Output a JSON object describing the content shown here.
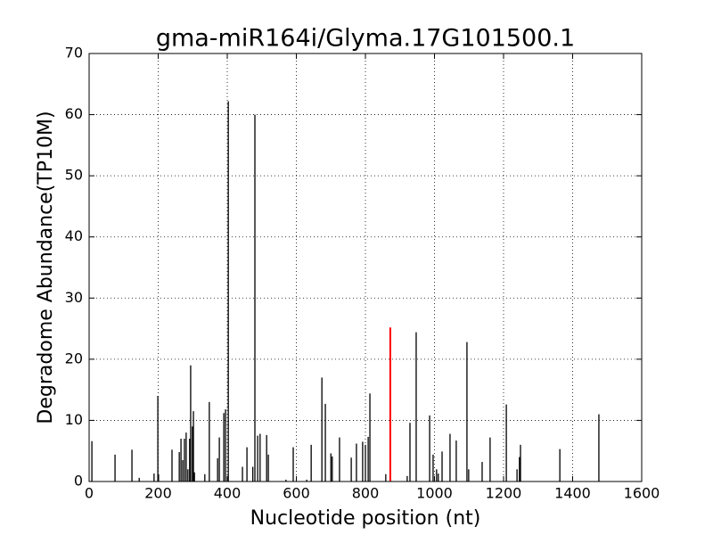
{
  "chart_data": {
    "type": "stem",
    "title": "gma-miR164i/Glyma.17G101500.1",
    "x_label": "Nucleotide position (nt)",
    "y_label": "Degradome Abundance(TP10M)",
    "xlim": [
      0,
      1600
    ],
    "xticks": [
      0,
      200,
      400,
      600,
      800,
      1000,
      1200,
      1400,
      1600
    ],
    "ylim": [
      0,
      70
    ],
    "yticks": [
      0,
      10,
      20,
      30,
      40,
      50,
      60,
      70
    ],
    "grid": true,
    "series": [
      {
        "color": "#000000",
        "x": [
          8,
          75,
          124,
          145,
          188,
          199,
          201,
          240,
          261,
          266,
          271,
          276,
          281,
          286,
          291,
          294,
          299,
          302,
          305,
          335,
          348,
          372,
          377,
          390,
          395,
          403,
          444,
          457,
          474,
          480,
          488,
          495,
          514,
          519,
          570,
          591,
          630,
          643,
          674,
          684,
          700,
          704,
          725,
          759,
          774,
          792,
          800,
          808,
          813,
          859,
          921,
          929,
          947,
          986,
          996,
          1006,
          1011,
          1022,
          1045,
          1063,
          1094,
          1099,
          1138,
          1161,
          1208,
          1239,
          1246,
          1249,
          1363,
          1476
        ],
        "values": [
          6.6,
          4.4,
          5.2,
          0.6,
          1.3,
          14,
          1.2,
          5.2,
          4.8,
          7,
          3.5,
          7,
          8,
          2,
          7,
          19,
          9,
          11.5,
          1.5,
          1.2,
          13,
          3.8,
          7.2,
          11.2,
          11.8,
          62.2,
          2.4,
          5.6,
          2.4,
          60,
          7.5,
          7.8,
          7.6,
          4.4,
          0.3,
          5.6,
          0.3,
          6,
          17,
          12.7,
          4.6,
          4.1,
          7.2,
          3.9,
          6.2,
          6.5,
          6,
          7.3,
          14.4,
          1.2,
          0.9,
          9.6,
          24.4,
          10.8,
          4.4,
          2,
          1.3,
          4.9,
          7.8,
          6.7,
          22.8,
          2,
          3.2,
          7.2,
          12.6,
          2,
          4,
          6,
          5.3,
          11
        ]
      },
      {
        "color": "#ff0000",
        "x": [
          872
        ],
        "values": [
          25.2
        ]
      }
    ]
  }
}
